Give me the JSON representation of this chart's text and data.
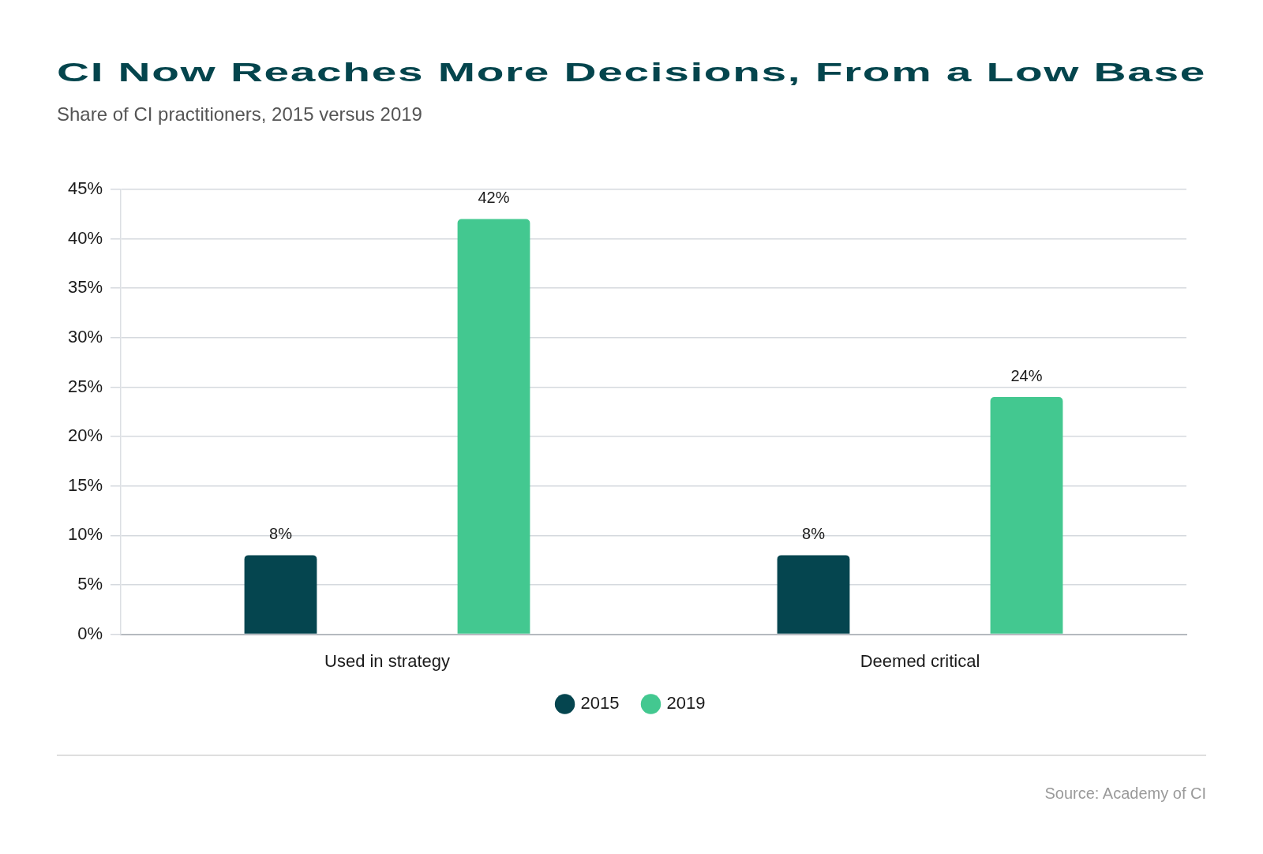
{
  "chart_data": {
    "type": "bar",
    "title": "CI Now Reaches More Decisions, From a Low Base",
    "subtitle": "Share of CI practitioners, 2015 versus 2019",
    "categories": [
      "Used in strategy",
      "Deemed critical"
    ],
    "series": [
      {
        "name": "2015",
        "color": "#05454f",
        "values": [
          8,
          8
        ],
        "value_labels": [
          "8%",
          "8%"
        ]
      },
      {
        "name": "2019",
        "color": "#43c890",
        "values": [
          42,
          24
        ],
        "value_labels": [
          "42%",
          "24%"
        ]
      }
    ],
    "ylim": [
      0,
      45
    ],
    "yticks": [
      {
        "value": 0,
        "label": "0%"
      },
      {
        "value": 5,
        "label": "5%"
      },
      {
        "value": 10,
        "label": "10%"
      },
      {
        "value": 15,
        "label": "15%"
      },
      {
        "value": 20,
        "label": "20%"
      },
      {
        "value": 25,
        "label": "25%"
      },
      {
        "value": 30,
        "label": "30%"
      },
      {
        "value": 35,
        "label": "35%"
      },
      {
        "value": 40,
        "label": "40%"
      },
      {
        "value": 45,
        "label": "45%"
      }
    ],
    "grid": "y",
    "legend": "bottom",
    "annotations": [
      "Source: Academy of CI"
    ]
  }
}
